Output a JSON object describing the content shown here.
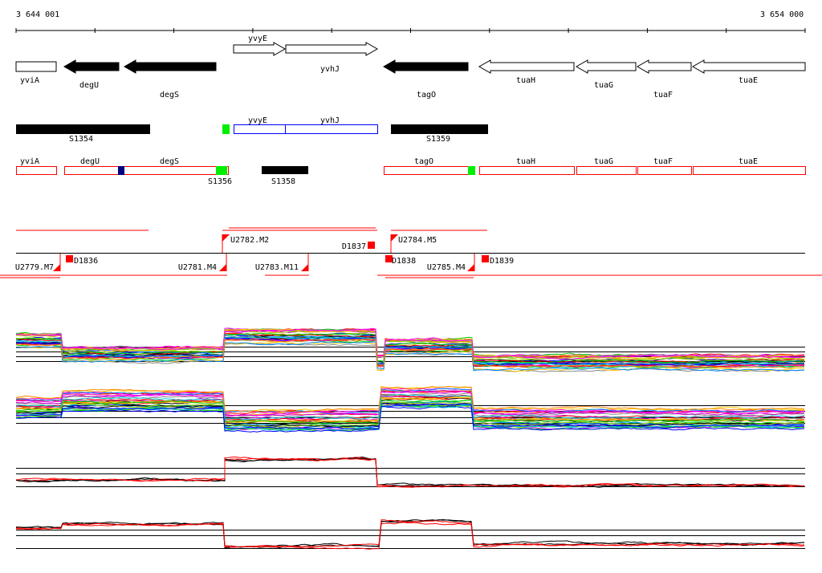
{
  "axis": {
    "start_label": "3 644 001",
    "end_label": "3 654 000"
  },
  "genes": [
    "yviA",
    "degU",
    "degS",
    "yvyE",
    "yvhJ",
    "tagO",
    "tuaH",
    "tuaG",
    "tuaF",
    "tuaE"
  ],
  "segments_row": {
    "blocks": [
      "S1354",
      "S1359"
    ],
    "box_labels": [
      "yvyE",
      "yvhJ"
    ]
  },
  "transcripts_row": {
    "labels": [
      "yviA",
      "degU",
      "degS",
      "tagO",
      "tuaH",
      "tuaG",
      "tuaF",
      "tuaE"
    ],
    "blocks": [
      "S1356",
      "S1358"
    ]
  },
  "features": {
    "up": [
      "U2779.M7",
      "U2781.M4",
      "U2783.M11",
      "U2785.M4"
    ],
    "upper": [
      "U2782.M2",
      "U2784.M5"
    ],
    "down": [
      "D1836",
      "D1837",
      "D1838",
      "D1839"
    ]
  },
  "colors": {
    "gene_fill": "#000000",
    "transcript": "#ff0000",
    "segment_green": "#00ee00",
    "segment_navy": "#000080",
    "box_blue": "#0000ff"
  },
  "signal_tracks": 4
}
